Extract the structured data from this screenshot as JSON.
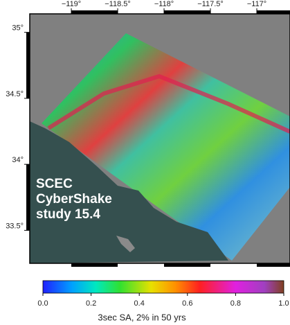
{
  "map": {
    "annotation": [
      "SCEC",
      "CyberShake",
      "study 15.4"
    ],
    "xlim": [
      -119.448,
      -116.642
    ],
    "xticks": [
      {
        "value": -119,
        "label": "−119°"
      },
      {
        "value": -118.5,
        "label": "−118.5°"
      },
      {
        "value": -118,
        "label": "−118°"
      },
      {
        "value": -117.5,
        "label": "−117.5°"
      },
      {
        "value": -117,
        "label": "−117°"
      }
    ],
    "ylim": [
      33.25,
      35.14
    ],
    "yticks": [
      {
        "value": 35,
        "label": "35°"
      },
      {
        "value": 34.5,
        "label": "34.5°"
      },
      {
        "value": 34,
        "label": "34°"
      },
      {
        "value": 33.5,
        "label": "33.5°"
      }
    ]
  },
  "colorbar": {
    "lim": [
      0,
      1
    ],
    "ticks": [
      {
        "value": 0,
        "label": "0.0"
      },
      {
        "value": 0.2,
        "label": "0.2"
      },
      {
        "value": 0.4,
        "label": "0.4"
      },
      {
        "value": 0.6,
        "label": "0.6"
      },
      {
        "value": 0.8,
        "label": "0.8"
      },
      {
        "value": 1,
        "label": "1.0"
      }
    ],
    "label": "3sec SA, 2% in 50 yrs"
  }
}
